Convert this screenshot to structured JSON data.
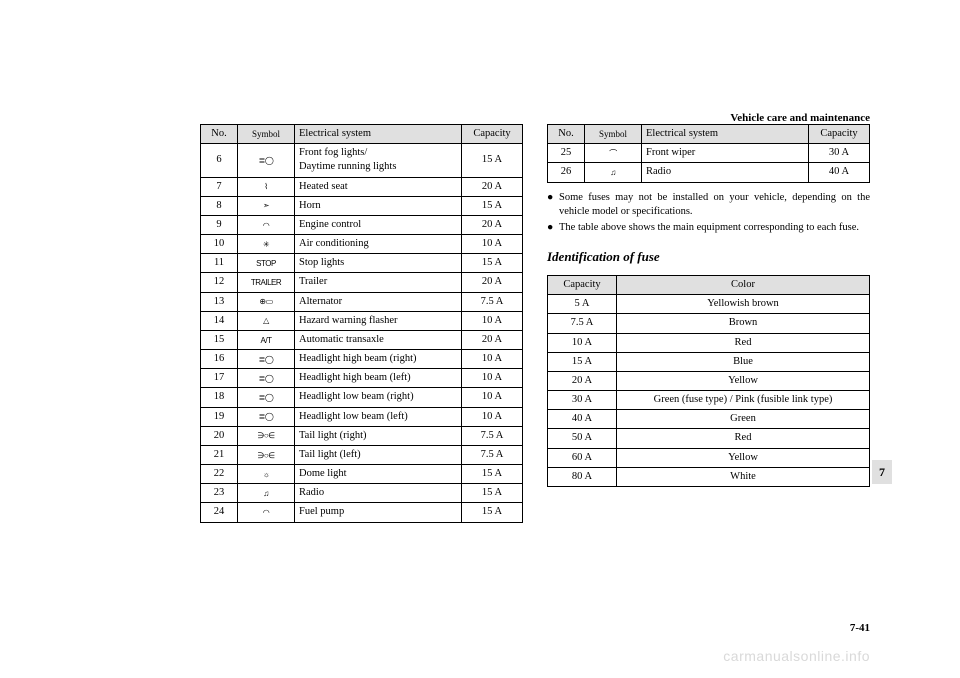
{
  "header": {
    "title": "Vehicle care and maintenance"
  },
  "watermark": "carmanualsonline.info",
  "page_number": "7-41",
  "thumb_tab": "7",
  "left_table": {
    "headers": {
      "no": "No.",
      "symbol": "Symbol",
      "system": "Electrical system",
      "capacity": "Capacity"
    },
    "rows": [
      {
        "no": "6",
        "symbol": "≣◯",
        "system": "Front fog lights/\nDaytime running lights",
        "capacity": "15 A"
      },
      {
        "no": "7",
        "symbol": "⌇",
        "system": "Heated seat",
        "capacity": "20 A"
      },
      {
        "no": "8",
        "symbol": "➣",
        "system": "Horn",
        "capacity": "15 A"
      },
      {
        "no": "9",
        "symbol": "◠",
        "system": "Engine control",
        "capacity": "20 A"
      },
      {
        "no": "10",
        "symbol": "✳",
        "system": "Air conditioning",
        "capacity": "10 A"
      },
      {
        "no": "11",
        "symbol": "STOP",
        "system": "Stop lights",
        "capacity": "15 A"
      },
      {
        "no": "12",
        "symbol": "TRAILER",
        "system": "Trailer",
        "capacity": "20 A"
      },
      {
        "no": "13",
        "symbol": "⊕▭",
        "system": "Alternator",
        "capacity": "7.5 A"
      },
      {
        "no": "14",
        "symbol": "△",
        "system": "Hazard warning flasher",
        "capacity": "10 A"
      },
      {
        "no": "15",
        "symbol": "A/T",
        "system": "Automatic transaxle",
        "capacity": "20 A"
      },
      {
        "no": "16",
        "symbol": "≣◯",
        "system": "Headlight high beam (right)",
        "capacity": "10 A"
      },
      {
        "no": "17",
        "symbol": "≣◯",
        "system": "Headlight high beam (left)",
        "capacity": "10 A"
      },
      {
        "no": "18",
        "symbol": "≣◯",
        "system": "Headlight low beam (right)",
        "capacity": "10 A"
      },
      {
        "no": "19",
        "symbol": "≣◯",
        "system": "Headlight low beam (left)",
        "capacity": "10 A"
      },
      {
        "no": "20",
        "symbol": "∋○∈",
        "system": "Tail light (right)",
        "capacity": "7.5 A"
      },
      {
        "no": "21",
        "symbol": "∋○∈",
        "system": "Tail light (left)",
        "capacity": "7.5 A"
      },
      {
        "no": "22",
        "symbol": "☼",
        "system": "Dome light",
        "capacity": "15 A"
      },
      {
        "no": "23",
        "symbol": "♫",
        "system": "Radio",
        "capacity": "15 A"
      },
      {
        "no": "24",
        "symbol": "◠",
        "system": "Fuel pump",
        "capacity": "15 A"
      }
    ]
  },
  "right_table": {
    "headers": {
      "no": "No.",
      "symbol": "Symbol",
      "system": "Electrical system",
      "capacity": "Capacity"
    },
    "rows": [
      {
        "no": "25",
        "symbol": "⌒",
        "system": "Front wiper",
        "capacity": "30 A"
      },
      {
        "no": "26",
        "symbol": "♫",
        "system": "Radio",
        "capacity": "40 A"
      }
    ]
  },
  "notes": [
    "Some fuses may not be installed on your vehicle, depending on the vehicle model or specifications.",
    "The table above shows the main equipment corresponding to each fuse."
  ],
  "subheading": "Identification of fuse",
  "color_table": {
    "headers": {
      "capacity": "Capacity",
      "color": "Color"
    },
    "rows": [
      {
        "capacity": "5 A",
        "color": "Yellowish brown"
      },
      {
        "capacity": "7.5 A",
        "color": "Brown"
      },
      {
        "capacity": "10 A",
        "color": "Red"
      },
      {
        "capacity": "15 A",
        "color": "Blue"
      },
      {
        "capacity": "20 A",
        "color": "Yellow"
      },
      {
        "capacity": "30 A",
        "color": "Green (fuse type) / Pink (fusible link type)"
      },
      {
        "capacity": "40 A",
        "color": "Green"
      },
      {
        "capacity": "50 A",
        "color": "Red"
      },
      {
        "capacity": "60 A",
        "color": "Yellow"
      },
      {
        "capacity": "80 A",
        "color": "White"
      }
    ]
  },
  "styling": {
    "page_bg": "#ffffff",
    "text_color": "#000000",
    "header_bg": "#e0e0e0",
    "border_color": "#000000",
    "watermark_color": "#d9d9d9",
    "font_body": "Times New Roman",
    "font_body_size_pt": 10.5,
    "font_header_size_pt": 11,
    "font_subheading_size_pt": 13
  }
}
